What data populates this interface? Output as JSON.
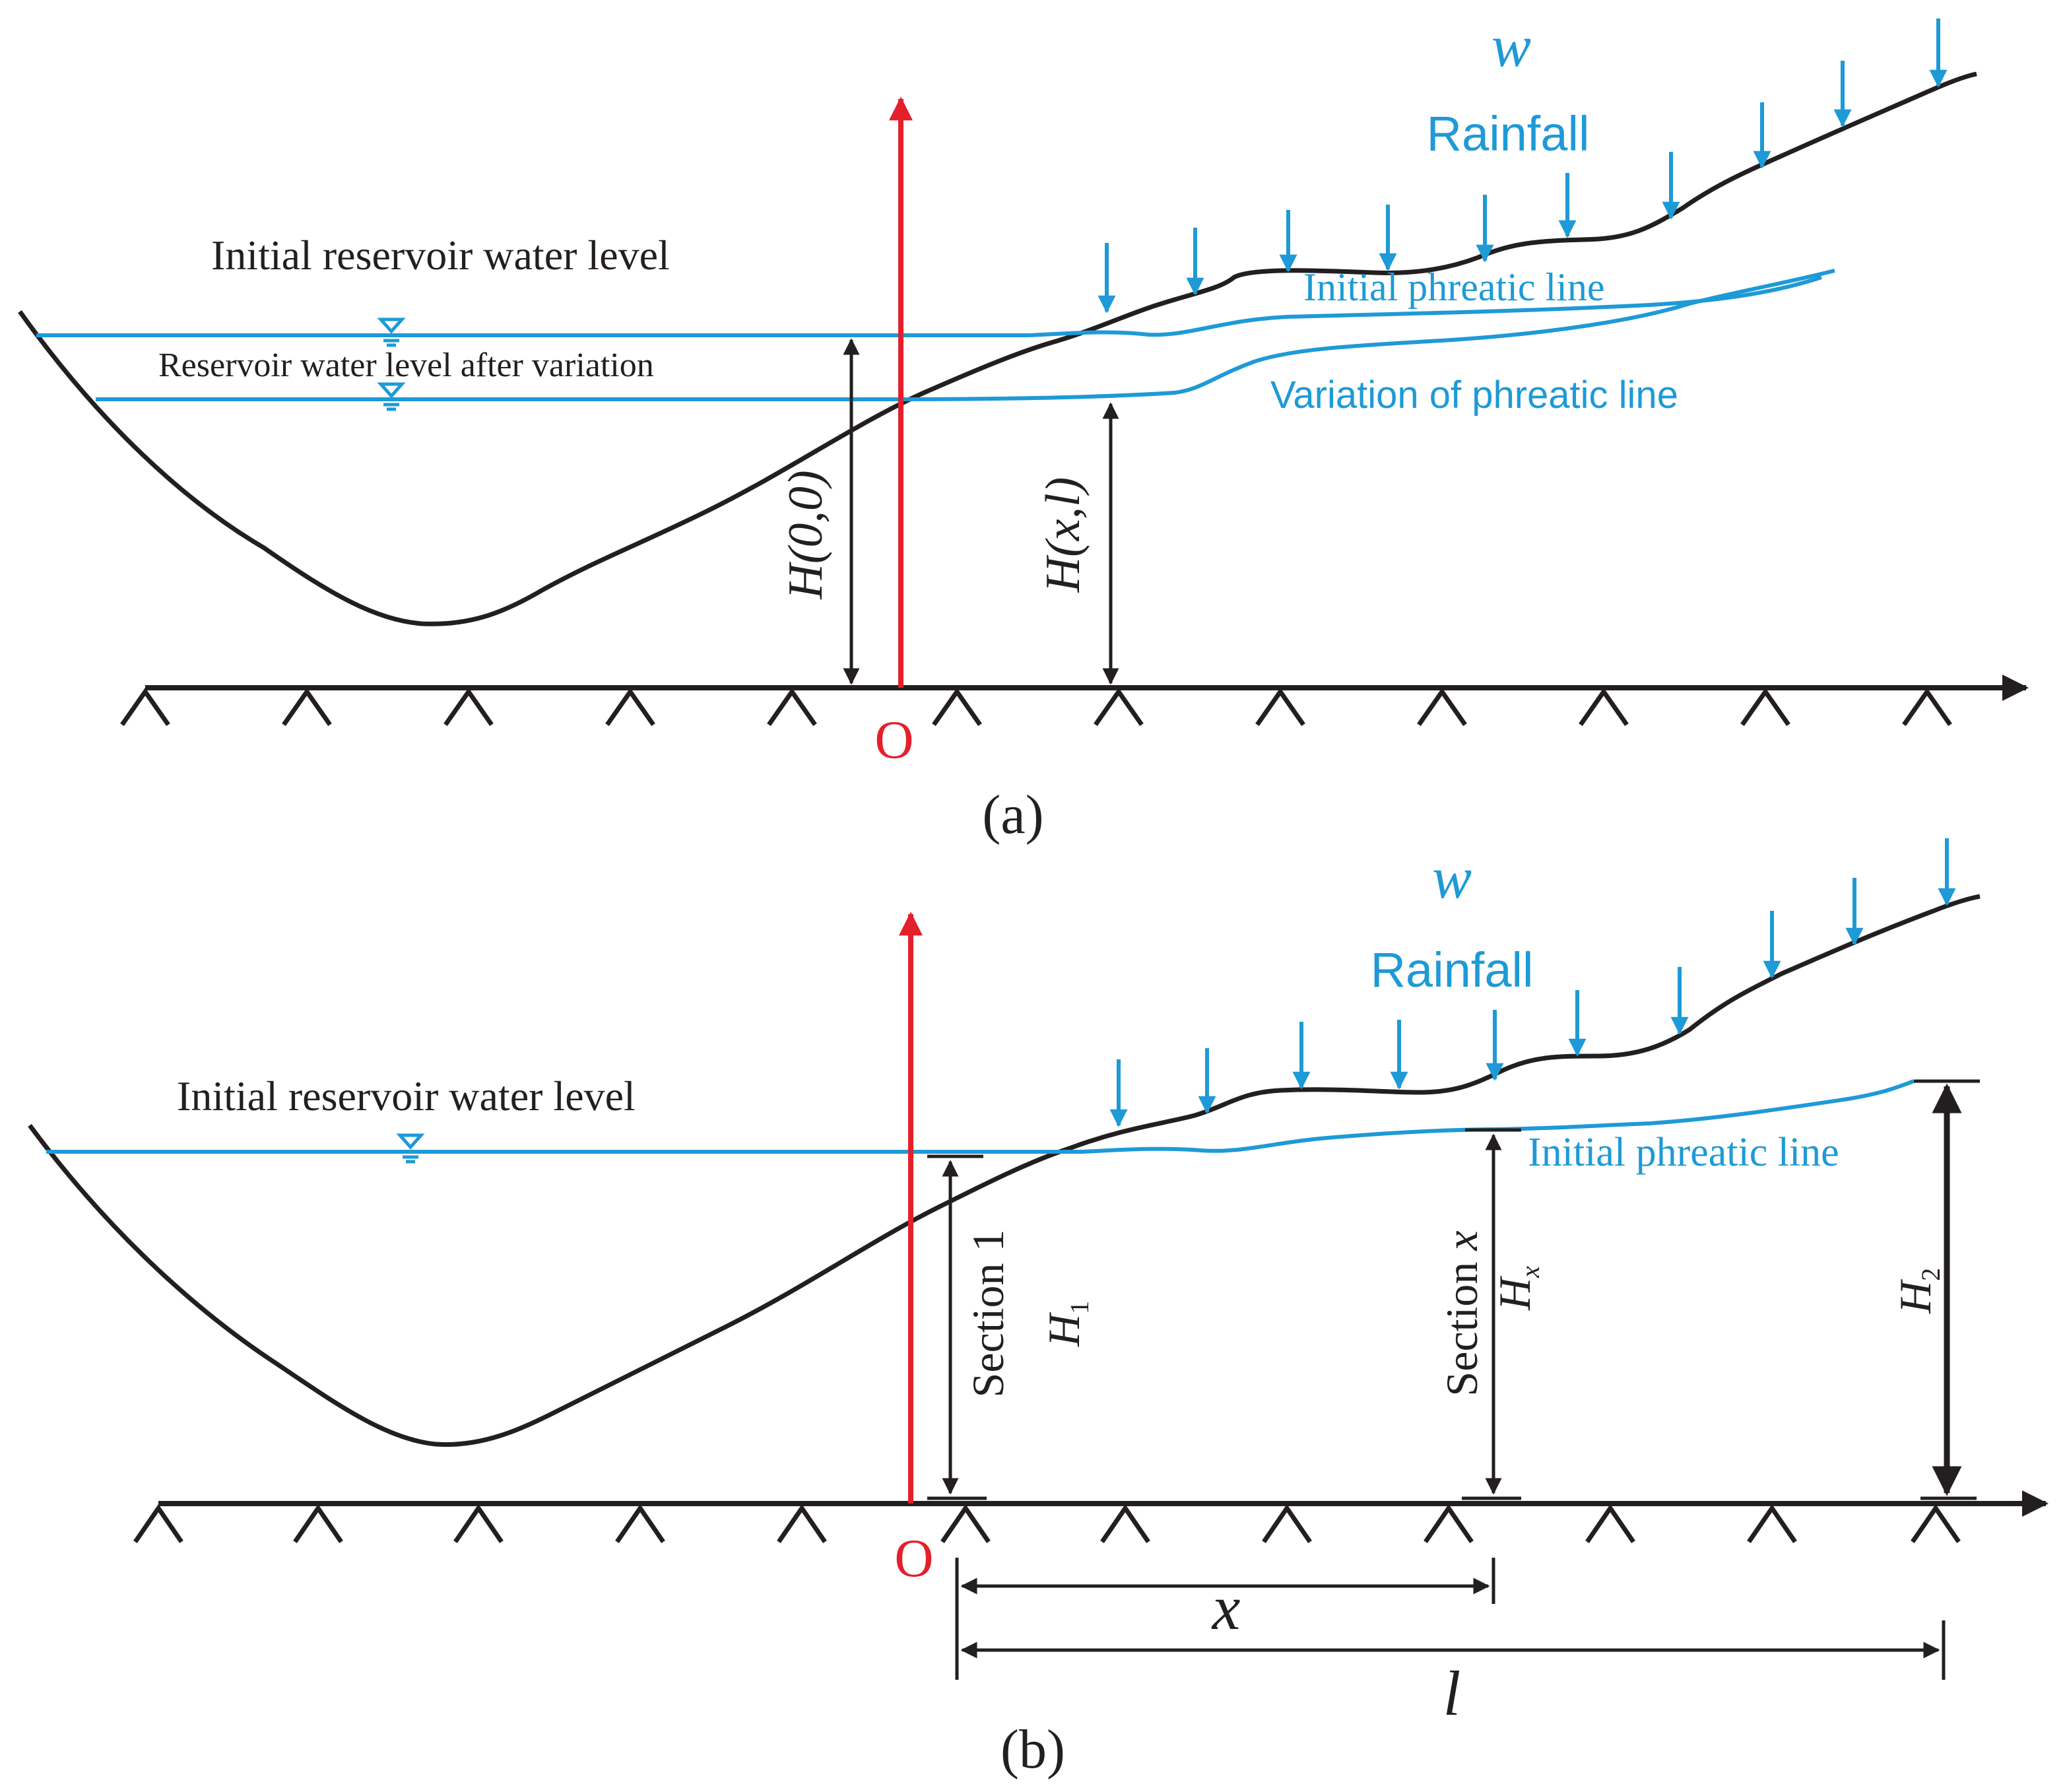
{
  "colors": {
    "ink": "#231f20",
    "water": "#1e9ad6",
    "axis": "#e3202b"
  },
  "panel_a": {
    "caption": "(a)",
    "rainfall_symbol": "w",
    "rainfall_label": "Rainfall",
    "initial_water_level_label": "Initial reservoir water level",
    "varied_water_level_label": "Reservoir water level after variation",
    "initial_phreatic_label": "Initial phreatic line",
    "variation_phreatic_label": "Variation of phreatic line",
    "origin_label": "O",
    "h00_label": "H(0,0)",
    "hxl_label": "H(x,l)"
  },
  "panel_b": {
    "caption": "(b)",
    "rainfall_symbol": "w",
    "rainfall_label": "Rainfall",
    "initial_water_level_label": "Initial reservoir water level",
    "initial_phreatic_label": "Initial phreatic line",
    "origin_label": "O",
    "section1_label": "Section 1",
    "h1_label": "H",
    "h1_sub": "1",
    "sectionx_label": "Section ",
    "sectionx_var": "x",
    "hx_label": "H",
    "hx_sub": "x",
    "h2_label": "H",
    "h2_sub": "2",
    "x_dim_label": "x",
    "l_dim_label": "l"
  }
}
